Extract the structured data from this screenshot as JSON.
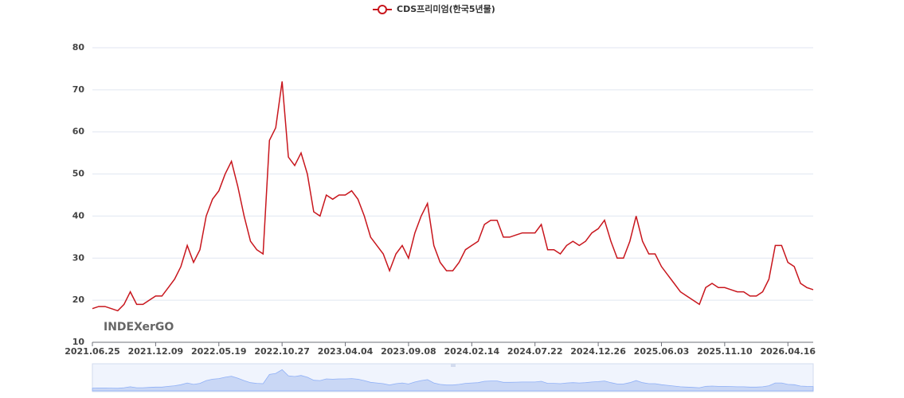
{
  "chart_data": {
    "type": "line",
    "annotation": "INDEXerGO",
    "categories": [
      "2021.06.25",
      null,
      null,
      null,
      null,
      null,
      null,
      null,
      null,
      null,
      "2021.12.09",
      null,
      null,
      null,
      null,
      null,
      null,
      null,
      null,
      null,
      "2022.05.19",
      null,
      null,
      null,
      null,
      null,
      null,
      null,
      null,
      null,
      "2022.10.27",
      null,
      null,
      null,
      null,
      null,
      null,
      null,
      null,
      null,
      "2023.04.04",
      null,
      null,
      null,
      null,
      null,
      null,
      null,
      null,
      null,
      "2023.09.08",
      null,
      null,
      null,
      null,
      null,
      null,
      null,
      null,
      null,
      "2024.02.14",
      null,
      null,
      null,
      null,
      null,
      null,
      null,
      null,
      null,
      "2024.07.22",
      null,
      null,
      null,
      null,
      null,
      null,
      null,
      null,
      null,
      "2024.12.26",
      null,
      null,
      null,
      null,
      null,
      null,
      null,
      null,
      null,
      "2025.06.03",
      null,
      null,
      null,
      null,
      null,
      null,
      null,
      null,
      null,
      "2025.11.10",
      null,
      null,
      null,
      null,
      null,
      null,
      null,
      null,
      null,
      "2026.04.16",
      null,
      null,
      null,
      null
    ],
    "series": [
      {
        "name": "CDS프리미엄(한국5년물)",
        "color": "#c8161d",
        "values": [
          18,
          18.5,
          18.5,
          18,
          17.5,
          19,
          22,
          19,
          19,
          20,
          21,
          21,
          23,
          25,
          28,
          33,
          29,
          32,
          40,
          44,
          46,
          50,
          53,
          47,
          40,
          34,
          32,
          31,
          58,
          61,
          72,
          54,
          52,
          55,
          50,
          41,
          40,
          45,
          44,
          45,
          45,
          46,
          44,
          40,
          35,
          33,
          31,
          27,
          31,
          33,
          30,
          36,
          40,
          43,
          33,
          29,
          27,
          27,
          29,
          32,
          33,
          34,
          38,
          39,
          39,
          35,
          35,
          35.5,
          36,
          36,
          36,
          38,
          32,
          32,
          31,
          33,
          34,
          33,
          34,
          36,
          37,
          39,
          34,
          30,
          30,
          34,
          40,
          34,
          31,
          31,
          28,
          26,
          24,
          22,
          21,
          20,
          19,
          23,
          24,
          23,
          23,
          22.5,
          22,
          22,
          21,
          21,
          22,
          25,
          33,
          33,
          29,
          28,
          24,
          23,
          22.5
        ]
      }
    ],
    "ylim": [
      10,
      80
    ],
    "yticks": [
      10,
      20,
      30,
      40,
      50,
      60,
      70,
      80
    ],
    "grid": true,
    "legend": "top"
  }
}
